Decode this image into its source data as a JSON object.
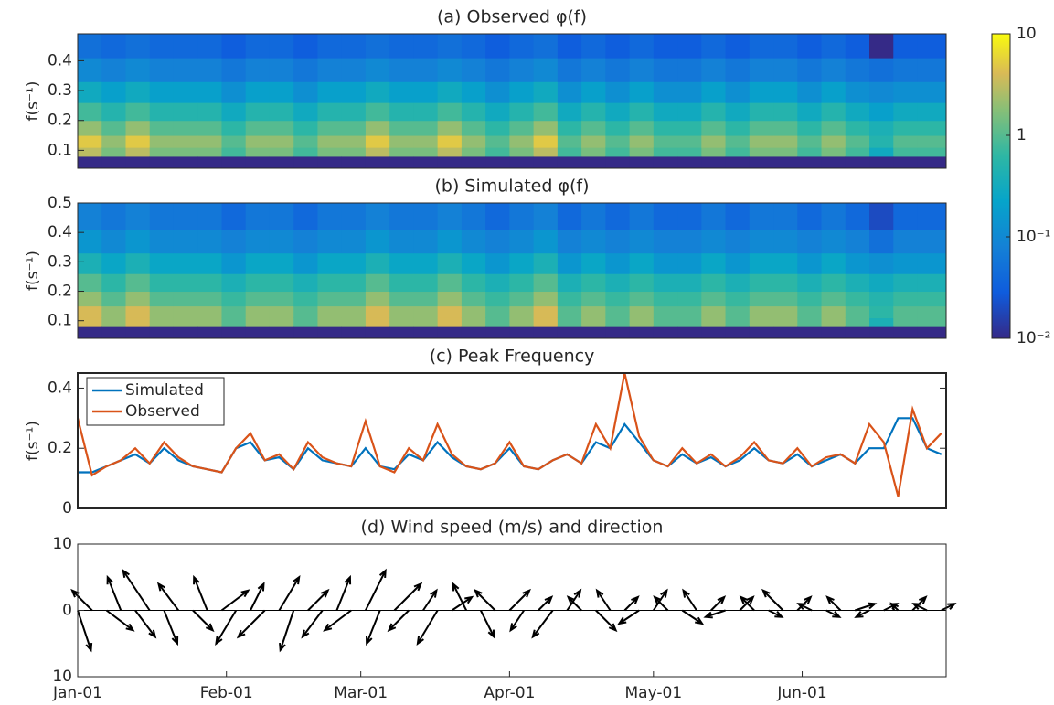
{
  "chart_data": [
    {
      "type": "heatmap",
      "title": "(a) Observed φ(f)",
      "ylabel": "f(s⁻¹)",
      "ylim": [
        0.04,
        0.49
      ],
      "yticks": [
        0.1,
        0.2,
        0.3,
        0.4
      ],
      "time_bins": [
        0,
        5,
        10,
        15,
        20,
        25,
        30,
        35,
        40,
        45,
        50,
        55,
        60,
        65,
        70,
        75,
        80,
        85,
        90,
        95,
        100,
        105,
        110,
        115,
        120,
        125,
        130,
        135,
        140,
        145,
        150,
        155,
        160,
        165,
        170,
        175,
        181
      ],
      "freq_bins": [
        0.04,
        0.08,
        0.11,
        0.15,
        0.2,
        0.26,
        0.33,
        0.41,
        0.49
      ],
      "values": [
        [
          0.01,
          3,
          5,
          2,
          0.8,
          0.3,
          0.1,
          0.05
        ],
        [
          0.01,
          1.5,
          2,
          1,
          0.5,
          0.2,
          0.08,
          0.04
        ],
        [
          0.01,
          3,
          5,
          2,
          0.8,
          0.3,
          0.1,
          0.05
        ],
        [
          0.01,
          1.5,
          2,
          1,
          0.5,
          0.2,
          0.08,
          0.04
        ],
        [
          0.01,
          1.5,
          2,
          1,
          0.5,
          0.2,
          0.08,
          0.04
        ],
        [
          0.01,
          1.5,
          2,
          1,
          0.5,
          0.2,
          0.08,
          0.04
        ],
        [
          0.01,
          0.8,
          1,
          0.6,
          0.3,
          0.12,
          0.06,
          0.03
        ],
        [
          0.01,
          1.5,
          2,
          1,
          0.5,
          0.2,
          0.08,
          0.04
        ],
        [
          0.01,
          1.5,
          2,
          1,
          0.5,
          0.2,
          0.08,
          0.04
        ],
        [
          0.01,
          0.8,
          1,
          0.6,
          0.3,
          0.12,
          0.06,
          0.03
        ],
        [
          0.01,
          1.5,
          2,
          1,
          0.5,
          0.2,
          0.08,
          0.04
        ],
        [
          0.01,
          1.5,
          2,
          1,
          0.5,
          0.2,
          0.08,
          0.04
        ],
        [
          0.01,
          3,
          5,
          2,
          0.8,
          0.3,
          0.1,
          0.05
        ],
        [
          0.01,
          1.5,
          2,
          1,
          0.5,
          0.2,
          0.08,
          0.04
        ],
        [
          0.01,
          1.5,
          2,
          1,
          0.5,
          0.2,
          0.08,
          0.04
        ],
        [
          0.01,
          3,
          5,
          2,
          0.8,
          0.3,
          0.1,
          0.05
        ],
        [
          0.01,
          1.5,
          2,
          1,
          0.5,
          0.2,
          0.08,
          0.04
        ],
        [
          0.01,
          0.8,
          1,
          0.6,
          0.3,
          0.12,
          0.06,
          0.03
        ],
        [
          0.01,
          1.5,
          2,
          1,
          0.5,
          0.2,
          0.08,
          0.04
        ],
        [
          0.01,
          3,
          5,
          2,
          0.8,
          0.3,
          0.1,
          0.05
        ],
        [
          0.01,
          0.8,
          1,
          0.6,
          0.3,
          0.12,
          0.06,
          0.03
        ],
        [
          0.01,
          1.5,
          2,
          1,
          0.5,
          0.2,
          0.08,
          0.04
        ],
        [
          0.01,
          0.8,
          1,
          0.6,
          0.3,
          0.12,
          0.06,
          0.03
        ],
        [
          0.01,
          1.5,
          2,
          1,
          0.5,
          0.2,
          0.08,
          0.04
        ],
        [
          0.01,
          0.8,
          1,
          0.6,
          0.3,
          0.12,
          0.06,
          0.03
        ],
        [
          0.01,
          0.8,
          1,
          0.6,
          0.3,
          0.12,
          0.06,
          0.03
        ],
        [
          0.01,
          1.5,
          2,
          1,
          0.5,
          0.2,
          0.08,
          0.04
        ],
        [
          0.01,
          0.8,
          1,
          0.6,
          0.3,
          0.12,
          0.06,
          0.03
        ],
        [
          0.01,
          1.5,
          2,
          1,
          0.5,
          0.2,
          0.08,
          0.04
        ],
        [
          0.01,
          1.5,
          2,
          1,
          0.5,
          0.2,
          0.08,
          0.04
        ],
        [
          0.01,
          0.8,
          1,
          0.6,
          0.3,
          0.12,
          0.06,
          0.03
        ],
        [
          0.01,
          1.5,
          2,
          1,
          0.5,
          0.2,
          0.08,
          0.04
        ],
        [
          0.01,
          0.8,
          1,
          0.6,
          0.3,
          0.12,
          0.06,
          0.03
        ],
        [
          0.01,
          0.3,
          0.5,
          0.4,
          0.2,
          0.1,
          0.05,
          0.01
        ],
        [
          0.01,
          0.8,
          1,
          0.6,
          0.3,
          0.12,
          0.06,
          0.03
        ],
        [
          0.01,
          0.8,
          1,
          0.6,
          0.3,
          0.12,
          0.06,
          0.03
        ]
      ],
      "colorbar": {
        "lim": [
          0.01,
          10
        ],
        "ticks": [
          10,
          1,
          {
            "value": 0.1,
            "label": "10⁻¹"
          },
          {
            "value": 0.01,
            "label": "10⁻²"
          }
        ],
        "log": true
      }
    },
    {
      "type": "heatmap",
      "title": "(b) Simulated φ(f)",
      "ylabel": "f(s⁻¹)",
      "ylim": [
        0.04,
        0.5
      ],
      "yticks": [
        0.1,
        0.2,
        0.3,
        0.4,
        0.5
      ],
      "time_bins": [
        0,
        5,
        10,
        15,
        20,
        25,
        30,
        35,
        40,
        45,
        50,
        55,
        60,
        65,
        70,
        75,
        80,
        85,
        90,
        95,
        100,
        105,
        110,
        115,
        120,
        125,
        130,
        135,
        140,
        145,
        150,
        155,
        160,
        165,
        170,
        175,
        181
      ],
      "freq_bins": [
        0.04,
        0.08,
        0.11,
        0.15,
        0.2,
        0.26,
        0.33,
        0.41,
        0.5
      ],
      "values": [
        [
          0.01,
          4,
          4,
          2,
          1,
          0.4,
          0.15,
          0.08
        ],
        [
          0.01,
          2,
          2,
          1,
          0.6,
          0.25,
          0.1,
          0.06
        ],
        [
          0.01,
          4,
          4,
          2,
          1,
          0.4,
          0.15,
          0.08
        ],
        [
          0.01,
          2,
          2,
          1,
          0.6,
          0.25,
          0.1,
          0.06
        ],
        [
          0.01,
          2,
          2,
          1,
          0.6,
          0.25,
          0.1,
          0.06
        ],
        [
          0.01,
          2,
          2,
          1,
          0.6,
          0.25,
          0.1,
          0.06
        ],
        [
          0.01,
          1,
          1,
          0.7,
          0.4,
          0.15,
          0.08,
          0.04
        ],
        [
          0.01,
          2,
          2,
          1,
          0.6,
          0.25,
          0.1,
          0.06
        ],
        [
          0.01,
          2,
          2,
          1,
          0.6,
          0.25,
          0.1,
          0.06
        ],
        [
          0.01,
          1,
          1,
          0.7,
          0.4,
          0.15,
          0.08,
          0.04
        ],
        [
          0.01,
          2,
          2,
          1,
          0.6,
          0.25,
          0.1,
          0.06
        ],
        [
          0.01,
          2,
          2,
          1,
          0.6,
          0.25,
          0.1,
          0.06
        ],
        [
          0.01,
          4,
          4,
          2,
          1,
          0.4,
          0.15,
          0.08
        ],
        [
          0.01,
          2,
          2,
          1,
          0.6,
          0.25,
          0.1,
          0.06
        ],
        [
          0.01,
          2,
          2,
          1,
          0.6,
          0.25,
          0.1,
          0.06
        ],
        [
          0.01,
          4,
          4,
          2,
          1,
          0.4,
          0.15,
          0.08
        ],
        [
          0.01,
          2,
          2,
          1,
          0.6,
          0.25,
          0.1,
          0.06
        ],
        [
          0.01,
          1,
          1,
          0.7,
          0.4,
          0.15,
          0.08,
          0.04
        ],
        [
          0.01,
          2,
          2,
          1,
          0.6,
          0.25,
          0.1,
          0.06
        ],
        [
          0.01,
          4,
          4,
          2,
          1,
          0.4,
          0.15,
          0.08
        ],
        [
          0.01,
          1,
          1,
          0.7,
          0.4,
          0.15,
          0.08,
          0.04
        ],
        [
          0.01,
          2,
          2,
          1,
          0.6,
          0.25,
          0.1,
          0.06
        ],
        [
          0.01,
          1,
          1,
          0.7,
          0.4,
          0.15,
          0.08,
          0.04
        ],
        [
          0.01,
          2,
          2,
          1,
          0.6,
          0.25,
          0.1,
          0.06
        ],
        [
          0.01,
          1,
          1,
          0.7,
          0.4,
          0.15,
          0.08,
          0.04
        ],
        [
          0.01,
          1,
          1,
          0.7,
          0.4,
          0.15,
          0.08,
          0.04
        ],
        [
          0.01,
          2,
          2,
          1,
          0.6,
          0.25,
          0.1,
          0.06
        ],
        [
          0.01,
          1,
          1,
          0.7,
          0.4,
          0.15,
          0.08,
          0.04
        ],
        [
          0.01,
          2,
          2,
          1,
          0.6,
          0.25,
          0.1,
          0.06
        ],
        [
          0.01,
          2,
          2,
          1,
          0.6,
          0.25,
          0.1,
          0.06
        ],
        [
          0.01,
          1,
          1,
          0.7,
          0.4,
          0.15,
          0.08,
          0.04
        ],
        [
          0.01,
          2,
          2,
          1,
          0.6,
          0.25,
          0.1,
          0.06
        ],
        [
          0.01,
          1,
          1,
          0.7,
          0.4,
          0.15,
          0.08,
          0.04
        ],
        [
          0.01,
          0.4,
          0.6,
          0.5,
          0.3,
          0.12,
          0.05,
          0.02
        ],
        [
          0.01,
          1,
          1,
          0.7,
          0.4,
          0.15,
          0.08,
          0.04
        ],
        [
          0.01,
          1,
          1,
          0.7,
          0.4,
          0.15,
          0.08,
          0.04
        ]
      ]
    },
    {
      "type": "line",
      "title": "(c) Peak Frequency",
      "ylabel": "f(s⁻¹)",
      "xlim": [
        0,
        181
      ],
      "ylim": [
        0,
        0.45
      ],
      "yticks": [
        0,
        0.2,
        0.4
      ],
      "legend": "upper left",
      "x": [
        0,
        3,
        6,
        9,
        12,
        15,
        18,
        21,
        24,
        27,
        30,
        33,
        36,
        39,
        42,
        45,
        48,
        51,
        54,
        57,
        60,
        63,
        66,
        69,
        72,
        75,
        78,
        81,
        84,
        87,
        90,
        93,
        96,
        99,
        102,
        105,
        108,
        111,
        114,
        117,
        120,
        123,
        126,
        129,
        132,
        135,
        138,
        141,
        144,
        147,
        150,
        153,
        156,
        159,
        162,
        165,
        168,
        171,
        174,
        177,
        180
      ],
      "series": [
        {
          "name": "Simulated",
          "color": "#0072bd",
          "values": [
            0.12,
            0.12,
            0.14,
            0.16,
            0.18,
            0.15,
            0.2,
            0.16,
            0.14,
            0.13,
            0.12,
            0.2,
            0.22,
            0.16,
            0.17,
            0.13,
            0.2,
            0.16,
            0.15,
            0.14,
            0.2,
            0.14,
            0.13,
            0.18,
            0.16,
            0.22,
            0.17,
            0.14,
            0.13,
            0.15,
            0.2,
            0.14,
            0.13,
            0.16,
            0.18,
            0.15,
            0.22,
            0.2,
            0.28,
            0.22,
            0.16,
            0.14,
            0.18,
            0.15,
            0.17,
            0.14,
            0.16,
            0.2,
            0.16,
            0.15,
            0.18,
            0.14,
            0.16,
            0.18,
            0.15,
            0.2,
            0.2,
            0.3,
            0.3,
            0.2,
            0.18
          ]
        },
        {
          "name": "Observed",
          "color": "#d95319",
          "values": [
            0.3,
            0.11,
            0.14,
            0.16,
            0.2,
            0.15,
            0.22,
            0.17,
            0.14,
            0.13,
            0.12,
            0.2,
            0.25,
            0.16,
            0.18,
            0.13,
            0.22,
            0.17,
            0.15,
            0.14,
            0.29,
            0.14,
            0.12,
            0.2,
            0.16,
            0.28,
            0.18,
            0.14,
            0.13,
            0.15,
            0.22,
            0.14,
            0.13,
            0.16,
            0.18,
            0.15,
            0.28,
            0.2,
            0.45,
            0.24,
            0.16,
            0.14,
            0.2,
            0.15,
            0.18,
            0.14,
            0.17,
            0.22,
            0.16,
            0.15,
            0.2,
            0.14,
            0.17,
            0.18,
            0.15,
            0.28,
            0.22,
            0.04,
            0.33,
            0.2,
            0.25
          ]
        }
      ]
    },
    {
      "type": "quiver",
      "title": "(d) Wind speed (m/s) and direction",
      "color": "#000000",
      "xlim": [
        0,
        181
      ],
      "ylim": [
        -10,
        10
      ],
      "yticks": [
        {
          "value": -10,
          "label": "10"
        },
        0,
        10
      ],
      "xticks": [
        {
          "value": 0,
          "label": "Jan-01"
        },
        {
          "value": 31,
          "label": "Feb-01"
        },
        {
          "value": 59,
          "label": "Mar-01"
        },
        {
          "value": 90,
          "label": "Apr-01"
        },
        {
          "value": 120,
          "label": "May-01"
        },
        {
          "value": 151,
          "label": "Jun-01"
        }
      ],
      "x": [
        0,
        3,
        6,
        9,
        12,
        15,
        18,
        21,
        24,
        27,
        30,
        33,
        36,
        39,
        42,
        45,
        48,
        51,
        54,
        57,
        60,
        63,
        66,
        69,
        72,
        75,
        78,
        81,
        84,
        87,
        90,
        93,
        96,
        99,
        102,
        105,
        108,
        111,
        114,
        117,
        120,
        123,
        126,
        129,
        132,
        135,
        138,
        141,
        144,
        147,
        150,
        153,
        156,
        159,
        162,
        165,
        168,
        171,
        174,
        177,
        180
      ],
      "u": [
        2,
        -3,
        4,
        -2,
        3,
        -4,
        2,
        -3,
        3,
        -2,
        4,
        -3,
        2,
        -4,
        3,
        -2,
        3,
        -3,
        2,
        -4,
        3,
        -2,
        4,
        -3,
        2,
        -3,
        3,
        -2,
        2,
        -3,
        3,
        -2,
        2,
        -3,
        2,
        -2,
        3,
        -2,
        2,
        -3,
        2,
        -2,
        3,
        -2,
        2,
        -3,
        2,
        -2,
        2,
        -3,
        2,
        -2,
        2,
        -2,
        3,
        -2,
        2,
        -1,
        2,
        -2,
        2
      ],
      "v": [
        -6,
        3,
        -3,
        5,
        -4,
        6,
        -5,
        4,
        -3,
        5,
        3,
        -5,
        4,
        -4,
        5,
        -6,
        3,
        -4,
        5,
        -3,
        6,
        -5,
        4,
        -3,
        3,
        -5,
        2,
        4,
        -4,
        3,
        3,
        -3,
        2,
        -4,
        3,
        2,
        -3,
        3,
        2,
        -2,
        3,
        2,
        -2,
        3,
        2,
        -1,
        2,
        2,
        -1,
        3,
        2,
        1,
        -1,
        2,
        1,
        -1,
        1,
        1,
        2,
        1,
        1
      ]
    }
  ]
}
